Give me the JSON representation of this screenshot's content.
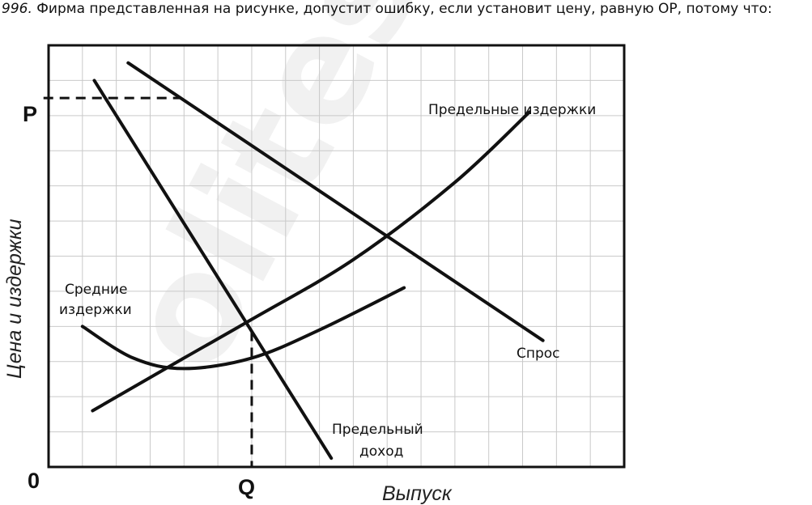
{
  "problem": {
    "number": "996.",
    "text": "Фирма представленная на рисунке, допустит ошибку, если установит цену, равную OP, потому что:"
  },
  "watermark": "olites",
  "chart_data": {
    "type": "line",
    "title": "",
    "xlabel": "Выпуск",
    "ylabel": "Цена и издержки",
    "xlim": [
      0,
      17
    ],
    "ylim": [
      0,
      12
    ],
    "grid": true,
    "origin_label": "0",
    "x_marker": {
      "label": "Q",
      "value": 6
    },
    "y_marker": {
      "label": "P",
      "value": 10.5
    },
    "series": [
      {
        "name": "Спрос",
        "points": [
          [
            2.35,
            11.5
          ],
          [
            14.6,
            3.6
          ]
        ]
      },
      {
        "name": "Предельный доход",
        "points": [
          [
            1.35,
            11.0
          ],
          [
            8.35,
            0.25
          ]
        ]
      },
      {
        "name": "Предельные издержки",
        "points": [
          [
            1.3,
            1.6
          ],
          [
            4,
            3.1
          ],
          [
            6,
            4.2
          ],
          [
            9,
            5.9
          ],
          [
            12,
            8.1
          ],
          [
            14.2,
            10.1
          ]
        ]
      },
      {
        "name": "Средние издержки",
        "points": [
          [
            1.0,
            4.0
          ],
          [
            2.5,
            3.1
          ],
          [
            4,
            2.8
          ],
          [
            6,
            3.1
          ],
          [
            8,
            3.9
          ],
          [
            10.5,
            5.1
          ]
        ]
      }
    ],
    "annotations": [
      {
        "text": "Предельные издержки",
        "series": "Предельные издержки"
      },
      {
        "text": "Спрос",
        "series": "Спрос"
      },
      {
        "text": "Средние",
        "series": "Средние издержки"
      },
      {
        "text": "издержки",
        "series": "Средние издержки"
      },
      {
        "text": "Предельный",
        "series": "Предельный доход"
      },
      {
        "text": "доход",
        "series": "Предельный доход"
      }
    ]
  }
}
